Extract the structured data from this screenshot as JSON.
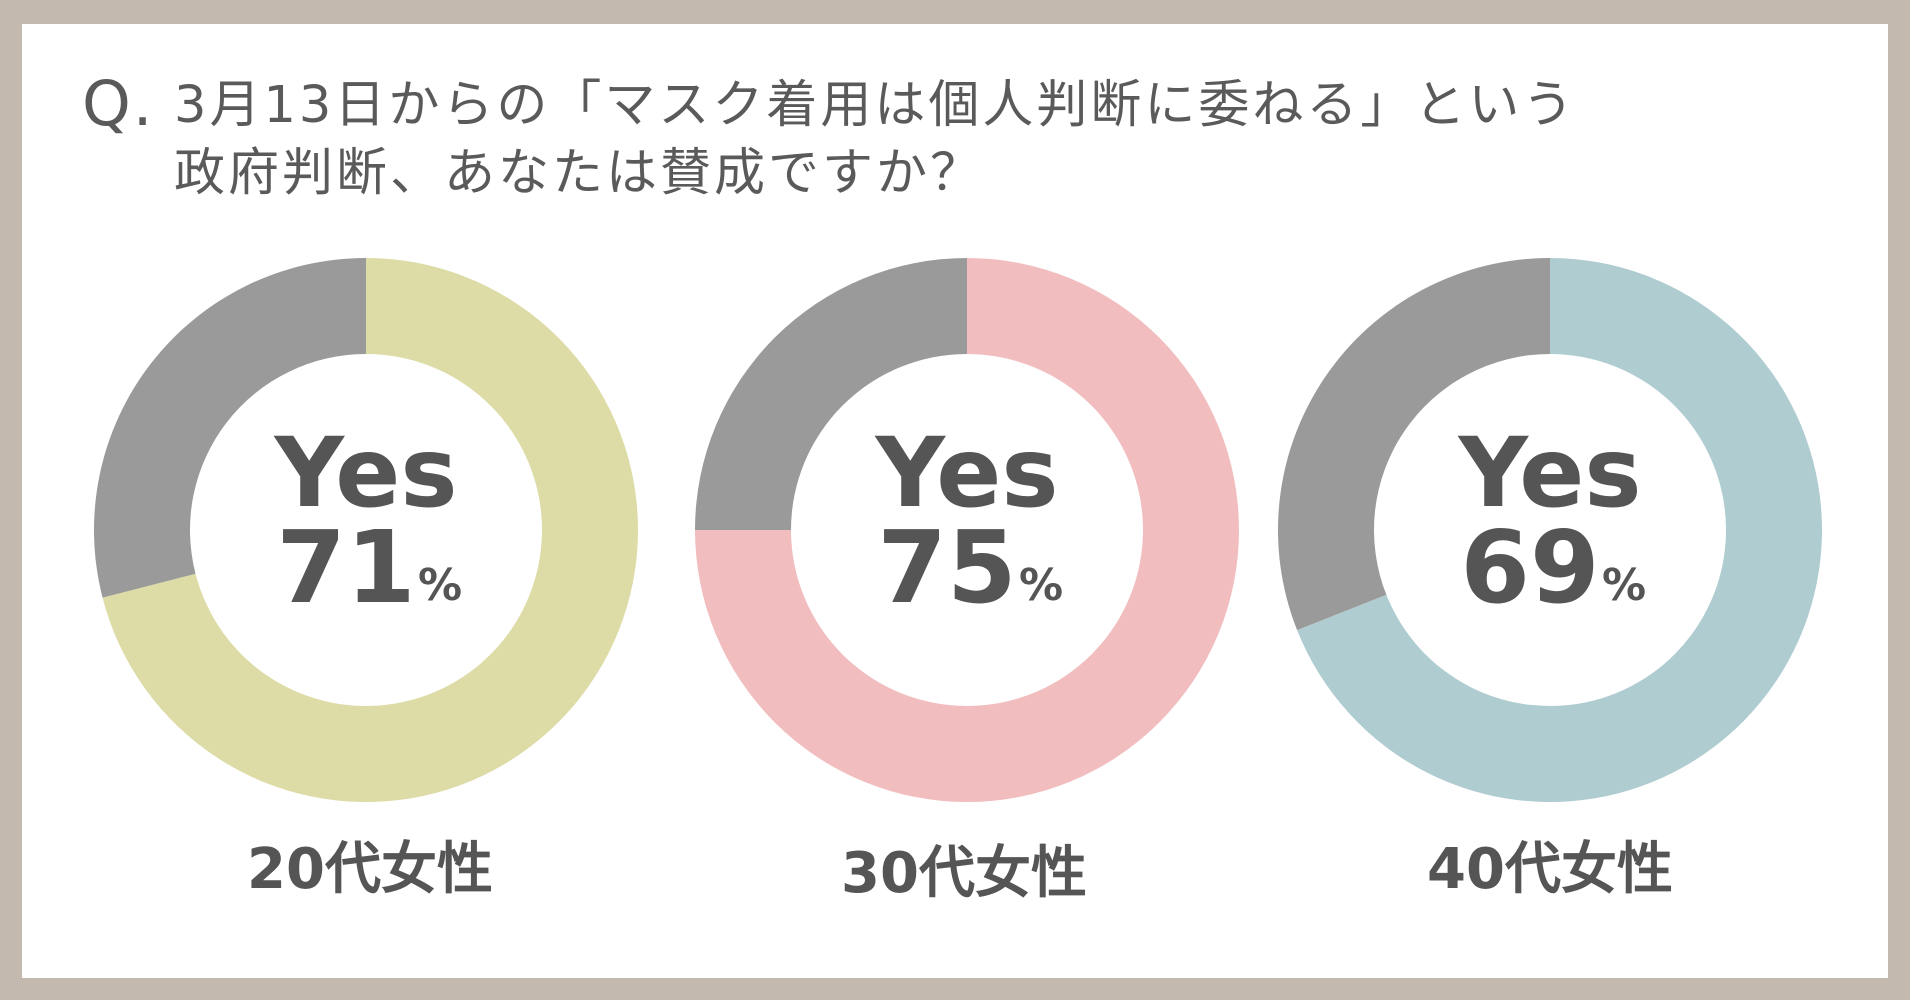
{
  "question": {
    "mark": "Q.",
    "line1": "3月13日からの「マスク着用は個人判断に委ねる」という",
    "line2": "政府判断、あなたは賛成ですか？"
  },
  "chart_data": [
    {
      "type": "pie",
      "group_label": "20代女性",
      "center_label": "Yes",
      "center_value": "71",
      "unit": "%",
      "slices": [
        {
          "label": "Yes",
          "value": 71,
          "color": "#dddba6"
        },
        {
          "label": "",
          "value": 29,
          "color": "#9a9a9a"
        }
      ]
    },
    {
      "type": "pie",
      "group_label": "30代女性",
      "center_label": "Yes",
      "center_value": "75",
      "unit": "%",
      "slices": [
        {
          "label": "Yes",
          "value": 75,
          "color": "#f2bdbe"
        },
        {
          "label": "",
          "value": 25,
          "color": "#9a9a9a"
        }
      ]
    },
    {
      "type": "pie",
      "group_label": "40代女性",
      "center_label": "Yes",
      "center_value": "69",
      "unit": "%",
      "slices": [
        {
          "label": "Yes",
          "value": 69,
          "color": "#afccd1"
        },
        {
          "label": "",
          "value": 31,
          "color": "#9a9a9a"
        }
      ]
    }
  ]
}
